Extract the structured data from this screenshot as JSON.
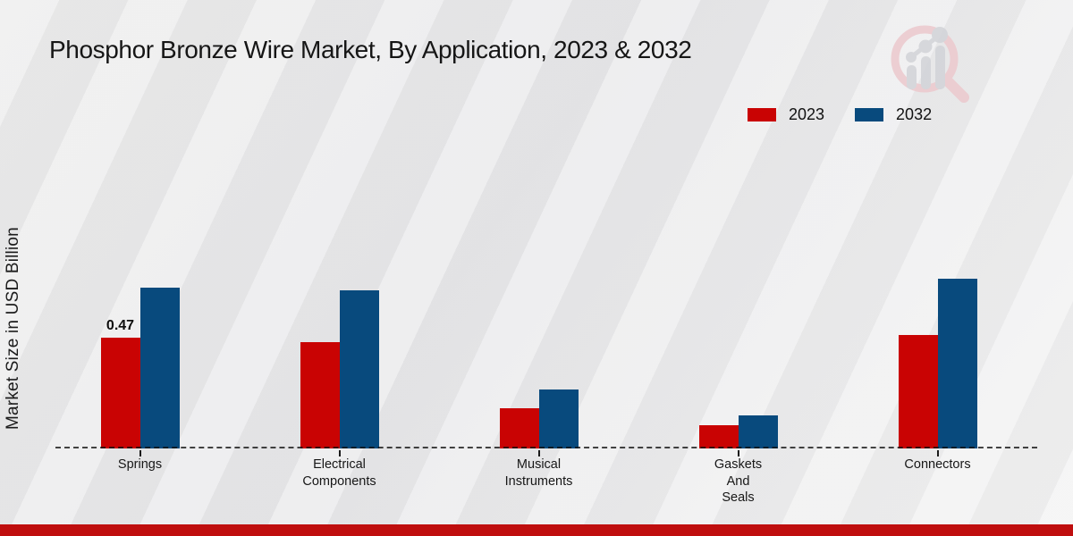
{
  "header": {
    "title": "Phosphor Bronze Wire Market, By Application, 2023 & 2032"
  },
  "axes": {
    "y_label": "Market Size in USD Billion"
  },
  "branding": {
    "logo_icon": "magnifier-bar-chart-logo",
    "footer_bar_color": "#bf0e0e"
  },
  "chart_data": {
    "type": "bar",
    "title": "Phosphor Bronze Wire Market, By Application, 2023 & 2032",
    "xlabel": "",
    "ylabel": "Market Size in USD Billion",
    "ylim": [
      0,
      0.8
    ],
    "grid": false,
    "legend_position": "top-right",
    "baseline_style": "dashed",
    "categories": [
      "Springs",
      "Electrical\nComponents",
      "Musical\nInstruments",
      "Gaskets\nAnd\nSeals",
      "Connectors"
    ],
    "series": [
      {
        "name": "2023",
        "color": "#c90303",
        "values": [
          0.47,
          0.45,
          0.17,
          0.1,
          0.48
        ]
      },
      {
        "name": "2032",
        "color": "#084a7d",
        "values": [
          0.68,
          0.67,
          0.25,
          0.14,
          0.72
        ]
      }
    ],
    "data_labels": [
      {
        "category_index": 0,
        "series_index": 0,
        "text": "0.47"
      }
    ]
  }
}
